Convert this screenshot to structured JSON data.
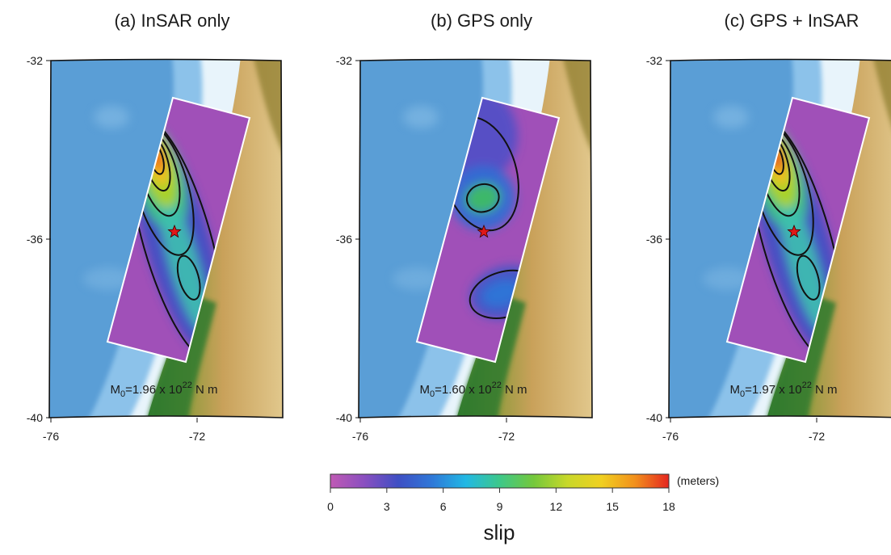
{
  "panels": [
    {
      "id": "a",
      "title": "(a)  InSAR only",
      "moment": {
        "prefix": "M",
        "sub": "0",
        "value": "=1.96 x 10",
        "exp": "22",
        "unit": " N m"
      },
      "lat_ticks": [
        "-32",
        "-36",
        "-40"
      ],
      "lon_ticks": [
        "-76",
        "-72"
      ],
      "slip_model": "insar"
    },
    {
      "id": "b",
      "title": "(b)  GPS only",
      "moment": {
        "prefix": "M",
        "sub": "0",
        "value": "=1.60 x 10",
        "exp": "22",
        "unit": " N m"
      },
      "lat_ticks": [
        "-32",
        "-36",
        "-40"
      ],
      "lon_ticks": [
        "-76",
        "-72"
      ],
      "slip_model": "gps"
    },
    {
      "id": "c",
      "title": "(c)  GPS + InSAR",
      "moment": {
        "prefix": "M",
        "sub": "0",
        "value": "=1.97 x 10",
        "exp": "22",
        "unit": " N m"
      },
      "lat_ticks": [
        "-32",
        "-36",
        "-40"
      ],
      "lon_ticks": [
        "-76",
        "-72"
      ],
      "slip_model": "joint"
    }
  ],
  "colorbar": {
    "ticks": [
      "0",
      "3",
      "6",
      "9",
      "12",
      "15",
      "18"
    ],
    "unit": "(meters)",
    "title": "slip",
    "colors": [
      "#c05ab4",
      "#8a4fc0",
      "#3f4fc4",
      "#2f78d8",
      "#22b8e4",
      "#3dc88a",
      "#74c83c",
      "#c8d82a",
      "#f0d020",
      "#f2901c",
      "#e52620"
    ]
  },
  "map_colors": {
    "ocean_deep": "#5a9ed6",
    "ocean_shallow": "#8cc2ea",
    "shelf": "#e8f4fb",
    "lowland": "#2f7a2f",
    "upland": "#c9a15a",
    "highland": "#e2c98e",
    "fault_background": "#a050b8",
    "epicenter": "#e01818"
  }
}
